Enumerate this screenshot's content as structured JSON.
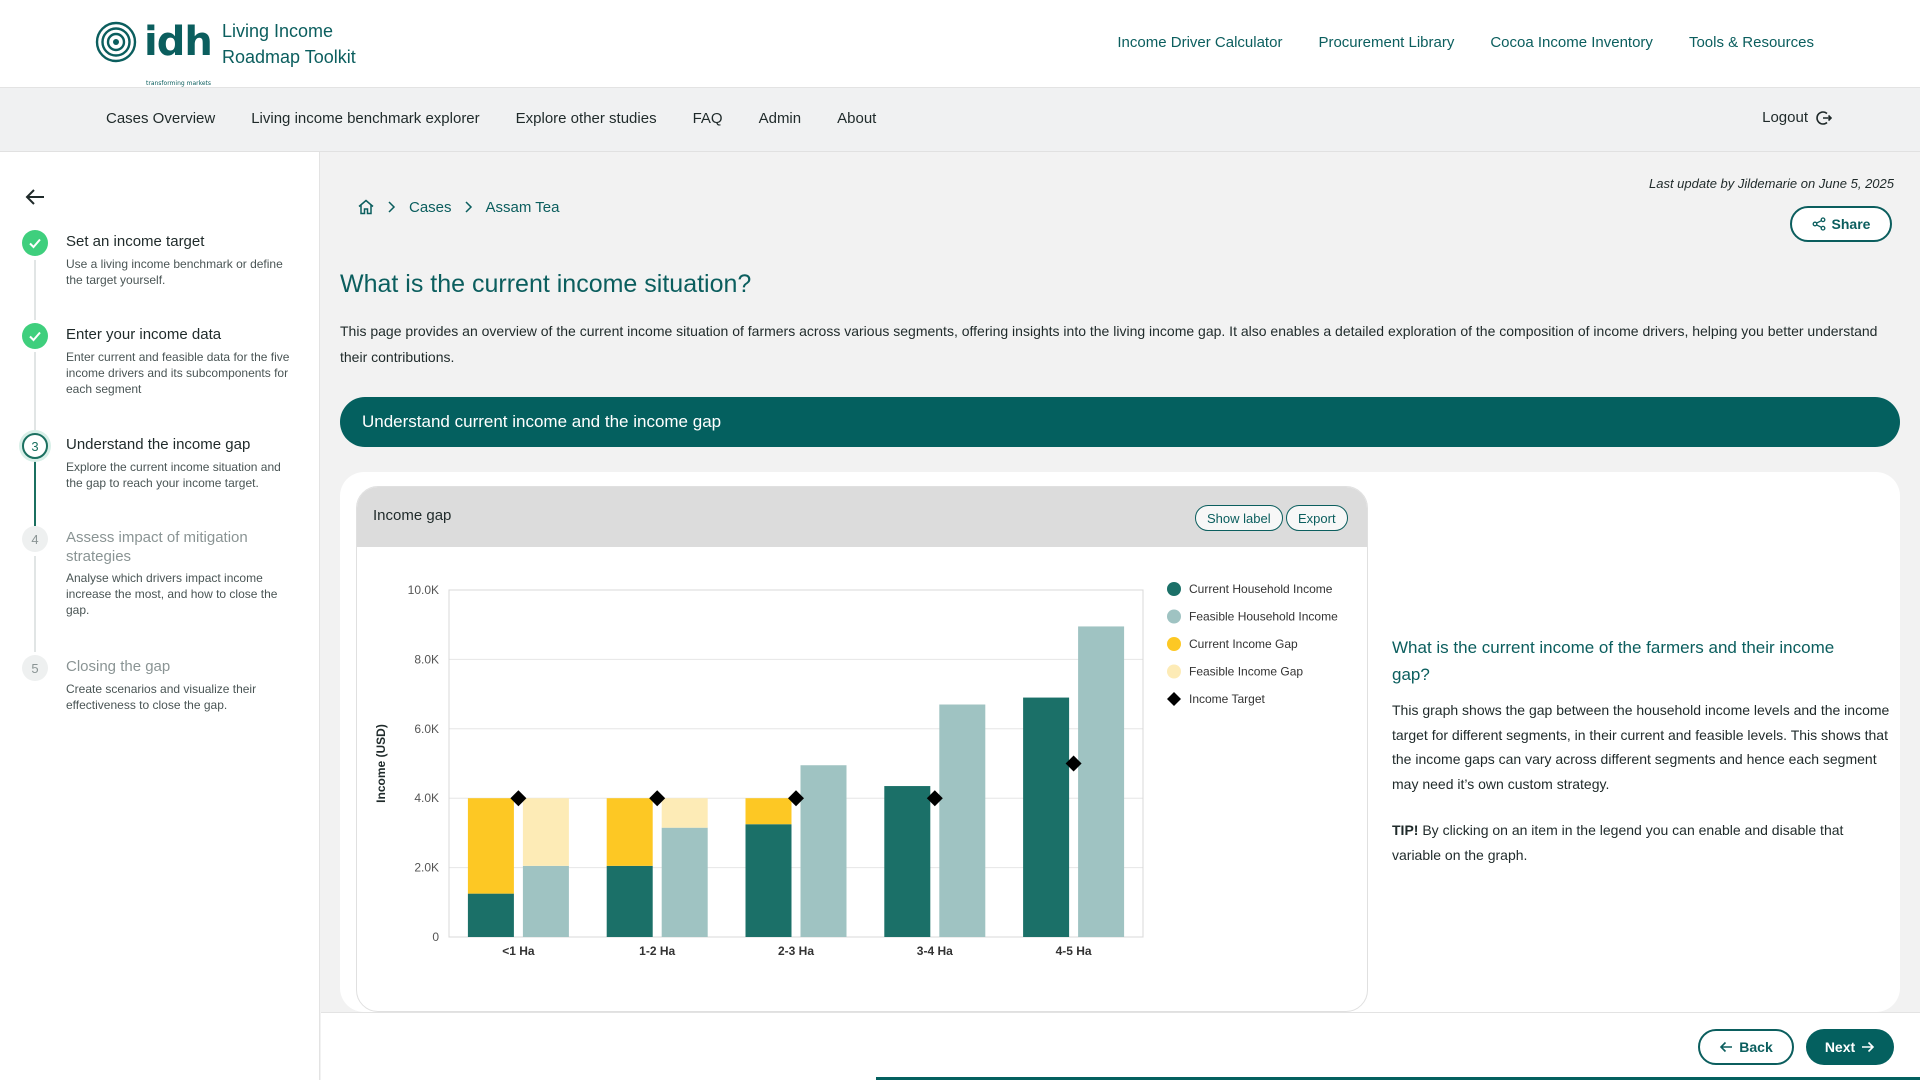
{
  "header": {
    "logo_text": "idh",
    "logo_tagline": "transforming markets",
    "toolkit_title": "Living Income Roadmap Toolkit",
    "links": [
      "Income Driver Calculator",
      "Procurement Library",
      "Cocoa Income Inventory",
      "Tools & Resources"
    ]
  },
  "nav": {
    "links": [
      "Cases Overview",
      "Living income benchmark explorer",
      "Explore other studies",
      "FAQ",
      "Admin",
      "About"
    ],
    "logout": "Logout"
  },
  "sidebar": {
    "steps": [
      {
        "number": "1",
        "status": "done",
        "title": "Set an income target",
        "desc": "Use a living income benchmark or define the target yourself."
      },
      {
        "number": "2",
        "status": "done",
        "title": "Enter your income data",
        "desc": "Enter current and feasible data for the five income drivers and its subcomponents for each segment"
      },
      {
        "number": "3",
        "status": "active",
        "title": "Understand the income gap",
        "desc": "Explore the current income situation and the gap to reach your income target."
      },
      {
        "number": "4",
        "status": "todo",
        "title": "Assess impact of mitigation strategies",
        "desc": "Analyse which drivers impact income increase the most, and how to close the gap."
      },
      {
        "number": "5",
        "status": "todo",
        "title": "Closing the gap",
        "desc": "Create scenarios and visualize their effectiveness to close the gap."
      }
    ]
  },
  "main": {
    "last_update": "Last update by Jildemarie on June 5, 2025",
    "share_label": "Share",
    "breadcrumb": [
      "Cases",
      "Assam Tea"
    ],
    "title": "What is the current income situation?",
    "description": "This page provides an overview of the current income situation of farmers across various segments, offering insights into the living income gap. It also enables a detailed exploration of the composition of income drivers, helping you better understand their contributions.",
    "section_title": "Understand current income and the income gap",
    "chart_card": {
      "title": "Income gap",
      "show_label": "Show label",
      "export": "Export"
    },
    "side_title": "What is the current income of the farmers and their income gap?",
    "side_text": "This graph shows the gap between the household income levels and the income target for different segments, in their current and feasible levels. This shows that the income gaps can vary across different segments and hence each segment may need it’s own custom strategy.",
    "tip_label": "TIP!",
    "tip_text": " By clicking on an item in the legend you can enable and disable that variable on the graph."
  },
  "footer": {
    "back_label": "Back",
    "next_label": "Next"
  },
  "colors": {
    "primary": "#04605f",
    "current_income": "#1b7068",
    "feasible_income": "#9fc3c2",
    "current_gap": "#fdc824",
    "feasible_gap": "#fdebb6",
    "target": "#000000",
    "done_step": "#3fcf7d"
  },
  "chart_data": {
    "type": "bar",
    "title": "",
    "ylabel": "Income (USD)",
    "xlabel": "",
    "ylim": [
      0,
      10000
    ],
    "yticks": [
      "0",
      "2.0K",
      "4.0K",
      "6.0K",
      "8.0K",
      "10.0K"
    ],
    "grid": true,
    "legend_position": "right",
    "categories": [
      "<1 Ha",
      "1-2 Ha",
      "2-3 Ha",
      "3-4 Ha",
      "4-5 Ha"
    ],
    "series": [
      {
        "name": "Current Household Income",
        "values": [
          1250,
          2050,
          3250,
          4350,
          6900
        ]
      },
      {
        "name": "Feasible Household Income",
        "values": [
          2050,
          3150,
          4950,
          6700,
          8950
        ]
      },
      {
        "name": "Current Income Gap",
        "values": [
          2750,
          1950,
          750,
          0,
          0
        ]
      },
      {
        "name": "Feasible Income Gap",
        "values": [
          1950,
          850,
          0,
          0,
          0
        ]
      },
      {
        "name": "Income Target",
        "values": [
          4000,
          4000,
          4000,
          4000,
          5000
        ]
      }
    ]
  }
}
